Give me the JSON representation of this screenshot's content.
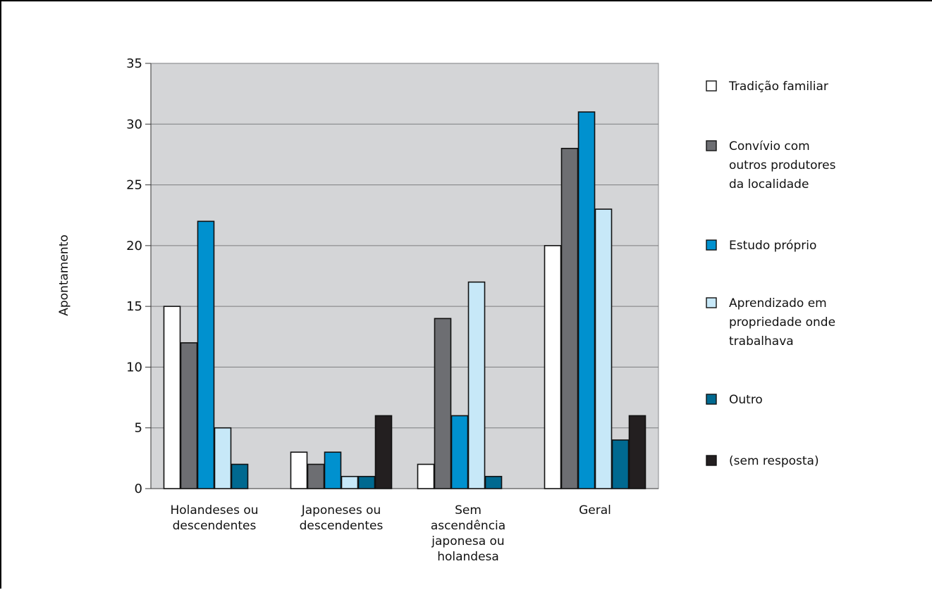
{
  "chart_data": {
    "type": "bar",
    "ylabel": "Apontamento",
    "xlabel": "",
    "ylim": [
      0,
      35
    ],
    "yticks": [
      0,
      5,
      10,
      15,
      20,
      25,
      30,
      35
    ],
    "grid": true,
    "legend_position": "right",
    "plot_background": "#d4d5d7",
    "categories": [
      [
        "Holandeses ou",
        "descendentes"
      ],
      [
        "Japoneses ou",
        "descendentes"
      ],
      [
        "Sem",
        "ascendência",
        "japonesa ou",
        "holandesa"
      ],
      [
        "Geral"
      ]
    ],
    "series": [
      {
        "name": [
          "Tradição familiar"
        ],
        "color": "#ffffff",
        "values": [
          15,
          3,
          2,
          20
        ]
      },
      {
        "name": [
          "Convívio com",
          "outros produtores",
          "da localidade"
        ],
        "color": "#6d6e72",
        "values": [
          12,
          2,
          14,
          28
        ]
      },
      {
        "name": [
          "Estudo próprio"
        ],
        "color": "#0091cf",
        "values": [
          22,
          3,
          6,
          31
        ]
      },
      {
        "name": [
          "Aprendizado em",
          "propriedade onde",
          "trabalhava"
        ],
        "color": "#c7e8f8",
        "values": [
          5,
          1,
          17,
          23
        ]
      },
      {
        "name": [
          "Outro"
        ],
        "color": "#006990",
        "values": [
          2,
          1,
          1,
          4
        ]
      },
      {
        "name": [
          "(sem resposta)"
        ],
        "color": "#231f20",
        "values": [
          0,
          6,
          0,
          6
        ]
      }
    ]
  }
}
